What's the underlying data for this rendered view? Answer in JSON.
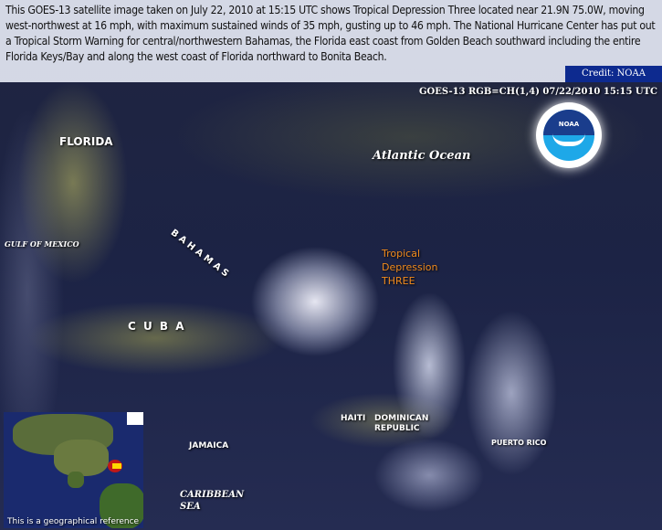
{
  "caption": "This GOES-13 satellite image taken on July 22, 2010 at 15:15 UTC shows Tropical Depression Three located near 21.9N 75.0W, moving west-northwest at 16 mph, with maximum sustained winds of 35 mph, gusting up to 46 mph. The National Hurricane Center has put out a Tropical Storm Warning for central/northwestern Bahamas, the Florida east coast from Golden Beach southward including the entire Florida Keys/Bay and along the west coast of Florida northward to Bonita Beach.",
  "credit": "Credit: NOAA",
  "stamp": "GOES-13 RGB=CH(1,4)  07/22/2010 15:15 UTC",
  "logo_text": "NOAA",
  "labels": {
    "florida": "FLORIDA",
    "atlantic": "Atlantic  Ocean",
    "gulf": "GULF OF MEXICO",
    "bahamas": "B A H A M A S",
    "storm": [
      "Tropical",
      "Depression",
      "THREE"
    ],
    "cuba": "C U B A",
    "haiti": "HAITI",
    "dominican": [
      "DOMINICAN",
      "REPUBLIC"
    ],
    "puerto_rico": "PUERTO RICO",
    "jamaica": "JAMAICA",
    "caribbean": [
      "CARIBBEAN",
      "SEA"
    ]
  },
  "inset_caption": "This is a geographical reference",
  "colors": {
    "storm_label": "#f08a1c",
    "credit_bg": "#0d2a8f"
  }
}
